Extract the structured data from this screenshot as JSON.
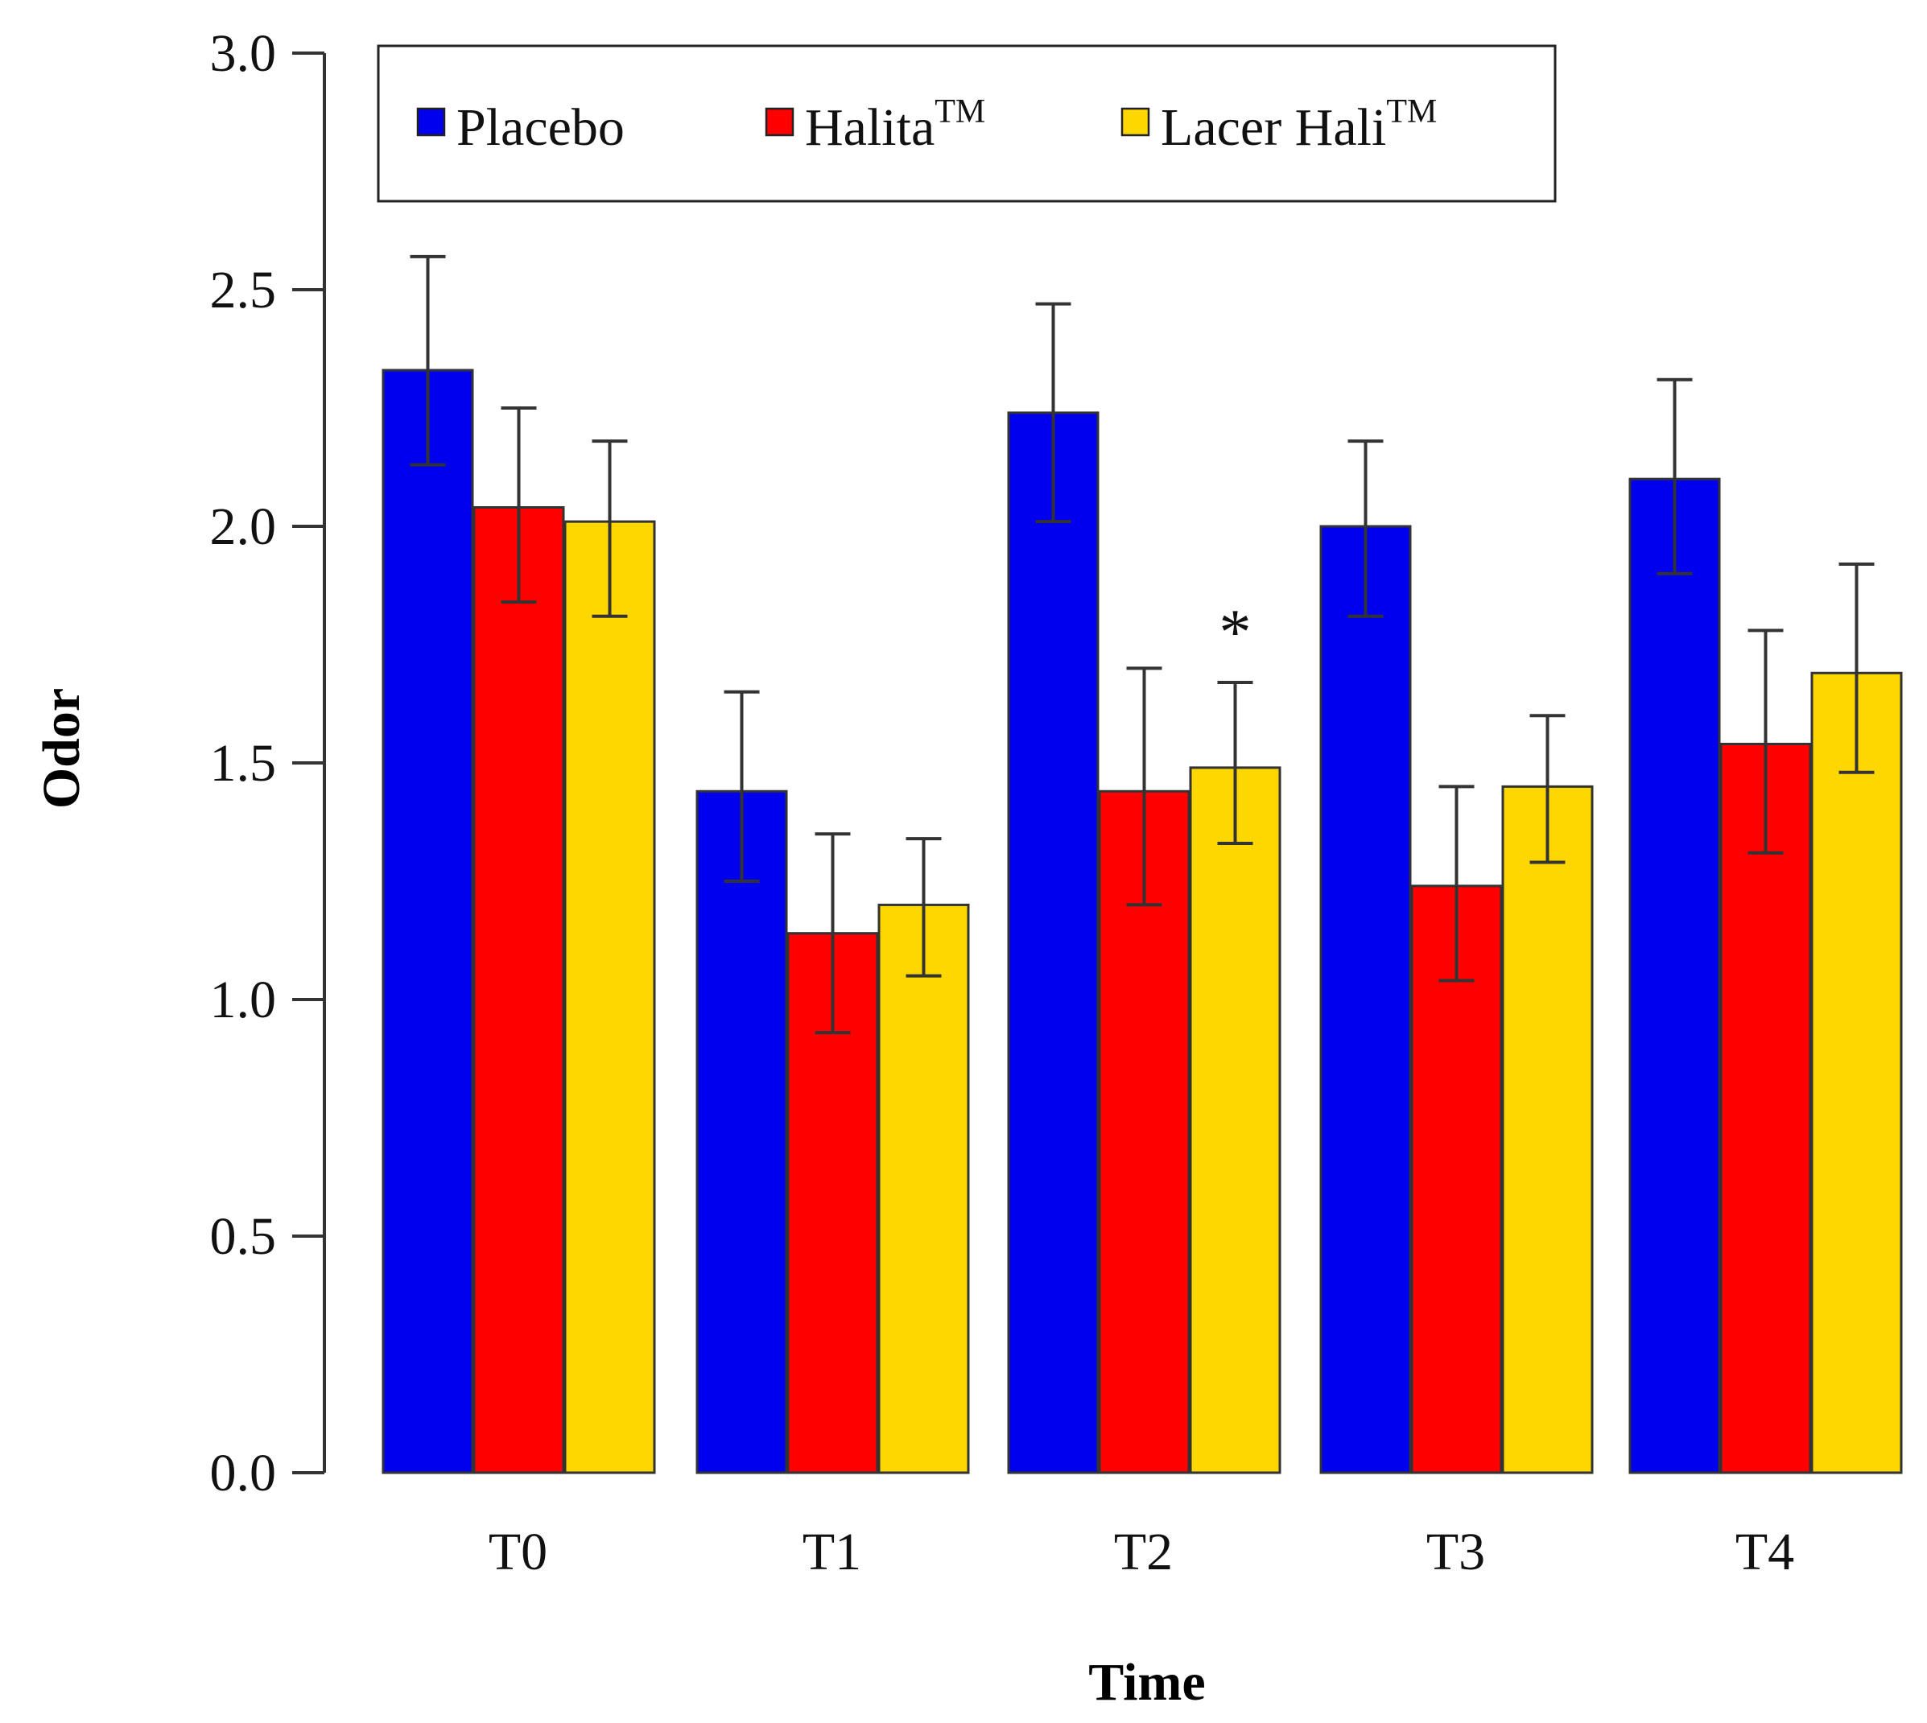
{
  "chart_data": {
    "type": "bar",
    "title": "",
    "xlabel": "Time",
    "ylabel": "Odor",
    "categories": [
      "T0",
      "T1",
      "T2",
      "T3",
      "T4"
    ],
    "ylim": [
      0,
      3
    ],
    "yticks": [
      "0.0",
      "0.5",
      "1.0",
      "1.5",
      "2.0",
      "2.5",
      "3.0"
    ],
    "grid": false,
    "legend_position": "top",
    "series": [
      {
        "name": "Placebo",
        "sup": "",
        "color": "#0000EE",
        "values": [
          2.33,
          1.44,
          2.24,
          2.0,
          2.1
        ],
        "err_low": [
          2.13,
          1.25,
          2.01,
          1.81,
          1.9
        ],
        "err_high": [
          2.57,
          1.65,
          2.47,
          2.18,
          2.31
        ]
      },
      {
        "name": "Halita",
        "sup": "TM",
        "color": "#FF0000",
        "values": [
          2.04,
          1.14,
          1.44,
          1.24,
          1.54
        ],
        "err_low": [
          1.84,
          0.93,
          1.2,
          1.04,
          1.31
        ],
        "err_high": [
          2.25,
          1.35,
          1.7,
          1.45,
          1.78
        ]
      },
      {
        "name": "Lacer Hali",
        "sup": "TM",
        "color": "#FFD700",
        "values": [
          2.01,
          1.2,
          1.49,
          1.45,
          1.69
        ],
        "err_low": [
          1.81,
          1.05,
          1.33,
          1.29,
          1.48
        ],
        "err_high": [
          2.18,
          1.34,
          1.67,
          1.6,
          1.92
        ]
      }
    ],
    "annotations": [
      {
        "text": "*",
        "category": "T2",
        "series": "Lacer Hali",
        "value": 1.82
      }
    ]
  }
}
